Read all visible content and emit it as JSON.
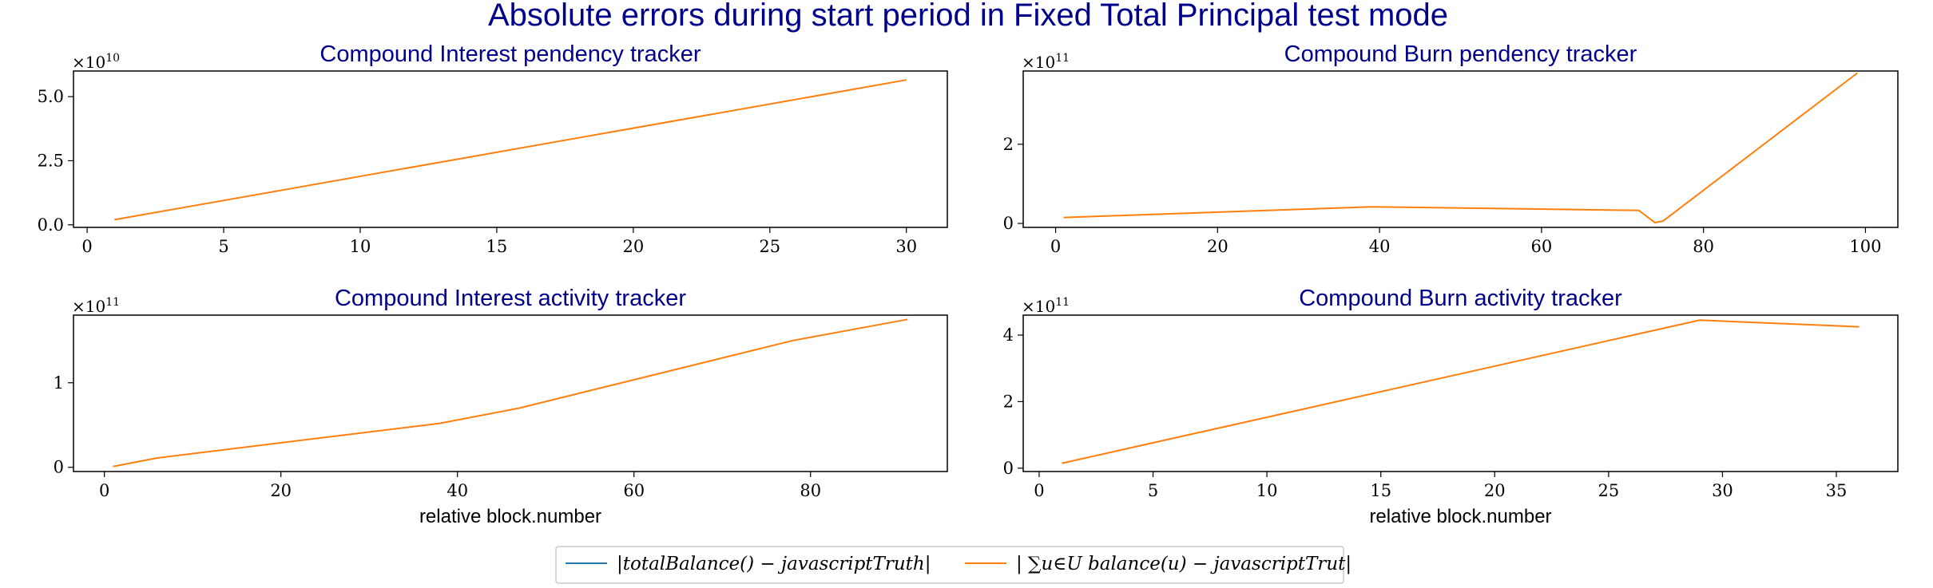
{
  "suptitle": "Absolute errors during start period in Fixed Total Principal test mode",
  "legend": [
    {
      "label": "|totalBalance() − javascriptTruth|",
      "color": "#1f77b4"
    },
    {
      "label": "| ∑u∈U balance(u) − javascriptTrut|",
      "color": "#ff7f0e"
    }
  ],
  "chart_data": [
    {
      "type": "line",
      "title": "Compound Interest pendency tracker",
      "xlabel": "",
      "multiplier": {
        "base": "×10",
        "exp": "10"
      },
      "xlim": [
        -0.5,
        31.5
      ],
      "ylim": [
        -0.1,
        6.0
      ],
      "xticks": [
        0,
        5,
        10,
        15,
        20,
        25,
        30
      ],
      "yticks": [
        0.0,
        2.5,
        5.0
      ],
      "ytick_labels": [
        "0.0",
        "2.5",
        "5.0"
      ],
      "series": [
        {
          "color": "#ff7f0e",
          "x": [
            1,
            30
          ],
          "y": [
            0.2,
            5.65
          ]
        }
      ]
    },
    {
      "type": "line",
      "title": "Compound Burn pendency tracker",
      "xlabel": "",
      "multiplier": {
        "base": "×10",
        "exp": "11"
      },
      "xlim": [
        -4,
        104
      ],
      "ylim": [
        -0.1,
        3.85
      ],
      "xticks": [
        0,
        20,
        40,
        60,
        80,
        100
      ],
      "yticks": [
        0,
        2
      ],
      "ytick_labels": [
        "0",
        "2"
      ],
      "series": [
        {
          "color": "#ff7f0e",
          "x": [
            1,
            39,
            72,
            74,
            75,
            99
          ],
          "y": [
            0.15,
            0.42,
            0.33,
            0.02,
            0.06,
            3.8
          ]
        }
      ]
    },
    {
      "type": "line",
      "title": "Compound Interest activity tracker",
      "xlabel": "relative block.number",
      "multiplier": {
        "base": "×10",
        "exp": "11"
      },
      "xlim": [
        -3.5,
        95.5
      ],
      "ylim": [
        -0.05,
        1.8
      ],
      "xticks": [
        0,
        20,
        40,
        60,
        80
      ],
      "yticks": [
        0,
        1
      ],
      "ytick_labels": [
        "0",
        "1"
      ],
      "series": [
        {
          "color": "#ff7f0e",
          "x": [
            1,
            6,
            38,
            47,
            78,
            91
          ],
          "y": [
            0.01,
            0.11,
            0.52,
            0.7,
            1.5,
            1.75
          ]
        }
      ]
    },
    {
      "type": "line",
      "title": "Compound Burn activity tracker",
      "xlabel": "relative block.number",
      "multiplier": {
        "base": "×10",
        "exp": "11"
      },
      "xlim": [
        -0.7,
        37.7
      ],
      "ylim": [
        -0.1,
        4.6
      ],
      "xticks": [
        0,
        5,
        10,
        15,
        20,
        25,
        30,
        35
      ],
      "yticks": [
        0,
        2,
        4
      ],
      "ytick_labels": [
        "0",
        "2",
        "4"
      ],
      "series": [
        {
          "color": "#ff7f0e",
          "x": [
            1,
            29,
            36
          ],
          "y": [
            0.15,
            4.45,
            4.25
          ]
        }
      ]
    }
  ]
}
